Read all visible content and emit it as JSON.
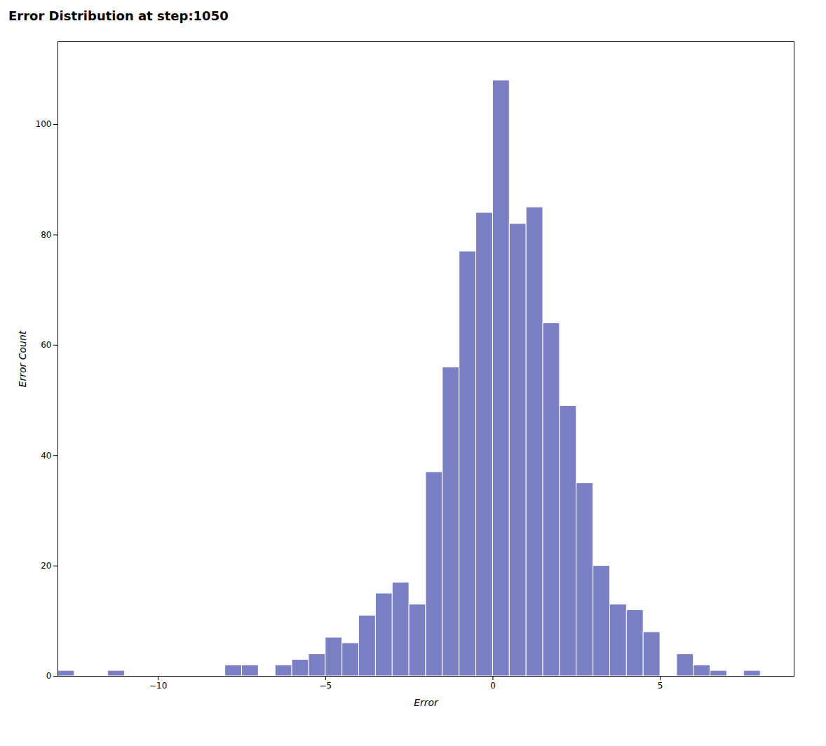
{
  "chart_data": {
    "type": "histogram",
    "title": "Error Distribution at step:1050",
    "xlabel": "Error",
    "ylabel": "Error Count",
    "color": "#7b7fc4",
    "bins": [
      -13.0,
      -12.5,
      -12.0,
      -11.5,
      -11.0,
      -10.5,
      -10.0,
      -9.5,
      -9.0,
      -8.5,
      -8.0,
      -7.5,
      -7.0,
      -6.5,
      -6.0,
      -5.5,
      -5.0,
      -4.5,
      -4.0,
      -3.5,
      -3.0,
      -2.5,
      -2.0,
      -1.5,
      -1.0,
      -0.5,
      0.0,
      0.5,
      1.0,
      1.5,
      2.0,
      2.5,
      3.0,
      3.5,
      4.0,
      4.5,
      5.0,
      5.5,
      6.0,
      6.5,
      7.0,
      7.5,
      8.0
    ],
    "counts": [
      1,
      0,
      0,
      1,
      0,
      0,
      0,
      0,
      0,
      0,
      2,
      2,
      0,
      2,
      3,
      4,
      7,
      6,
      11,
      15,
      17,
      13,
      37,
      56,
      77,
      84,
      108,
      82,
      85,
      64,
      49,
      35,
      20,
      13,
      12,
      8,
      0,
      4,
      2,
      1,
      0,
      1
    ],
    "xlim": [
      -13,
      9
    ],
    "ylim": [
      0,
      115
    ],
    "xticks": [
      -10,
      -5,
      0,
      5
    ],
    "yticks": [
      0,
      20,
      40,
      60,
      80,
      100
    ],
    "grid": false
  }
}
